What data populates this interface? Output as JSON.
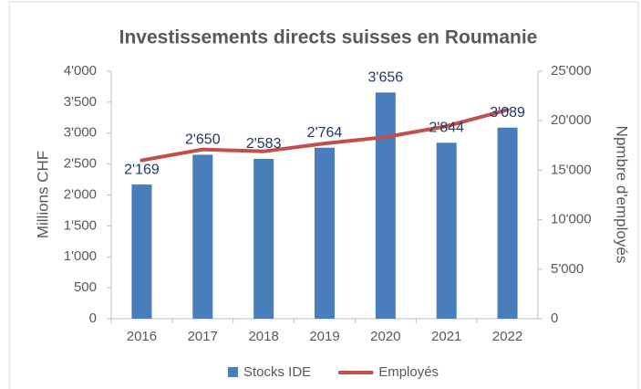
{
  "chart_data": {
    "type": "combo",
    "title": "Investissements directs suisses en Roumanie",
    "categories": [
      "2016",
      "2017",
      "2018",
      "2019",
      "2020",
      "2021",
      "2022"
    ],
    "series": [
      {
        "name": "Stocks IDE",
        "type": "bar",
        "color": "#4a7ebb",
        "axis": "y",
        "values": [
          2169,
          2650,
          2583,
          2764,
          3656,
          2844,
          3089
        ],
        "value_labels": [
          "2'169",
          "2'650",
          "2'583",
          "2'764",
          "3'656",
          "2'844",
          "3'089"
        ]
      },
      {
        "name": "Employés",
        "type": "line",
        "color": "#c0504d",
        "axis": "y2",
        "values": [
          16000,
          17100,
          16900,
          17700,
          18350,
          19450,
          21100
        ]
      }
    ],
    "ylabel": "Millions CHF",
    "y2label": "Npmbre d'employés",
    "ylim": [
      0,
      4000
    ],
    "yticks": [
      0,
      500,
      {
        "value": 1000,
        "label": "1'000"
      },
      {
        "value": 1500,
        "label": "1'500"
      },
      {
        "value": 2000,
        "label": "2'000"
      },
      {
        "value": 2500,
        "label": "2'500"
      },
      {
        "value": 3000,
        "label": "3'000"
      },
      {
        "value": 3500,
        "label": "3'500"
      },
      {
        "value": 4000,
        "label": "4'000"
      }
    ],
    "y2lim": [
      0,
      25000
    ],
    "y2ticks": [
      0,
      {
        "value": 5000,
        "label": "5'000"
      },
      {
        "value": 10000,
        "label": "10'000"
      },
      {
        "value": 15000,
        "label": "15'000"
      },
      {
        "value": 20000,
        "label": "20'000"
      },
      {
        "value": 25000,
        "label": "25'000"
      }
    ],
    "legend": "bottom"
  }
}
